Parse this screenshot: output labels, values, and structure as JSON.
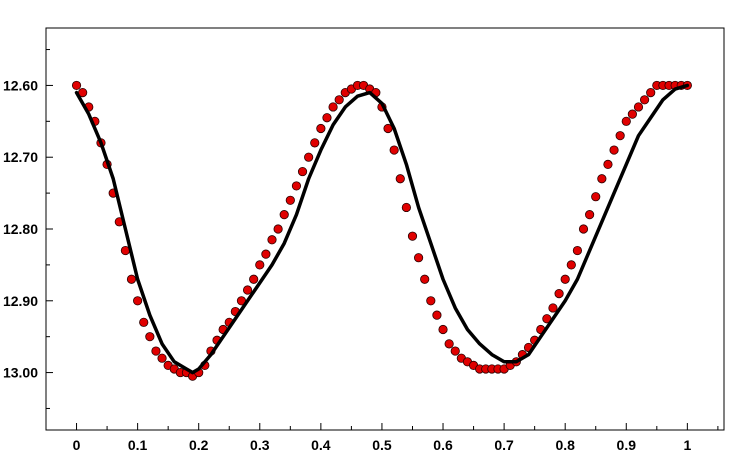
{
  "chart_data": {
    "type": "scatter",
    "title": "",
    "xlabel": "",
    "ylabel": "",
    "xlim": [
      -0.05,
      1.06
    ],
    "ylim": [
      13.08,
      12.52
    ],
    "y_inverted": true,
    "grid": false,
    "legend": "none",
    "x_ticks": [
      0,
      0.1,
      0.2,
      0.3,
      0.4,
      0.5,
      0.6,
      0.7,
      0.8,
      0.9,
      1
    ],
    "x_tick_labels": [
      "0",
      "0.1",
      "0.2",
      "0.3",
      "0.4",
      "0.5",
      "0.6",
      "0.7",
      "0.8",
      "0.9",
      "1"
    ],
    "y_ticks": [
      12.6,
      12.7,
      12.8,
      12.9,
      13.0
    ],
    "y_tick_labels": [
      "12.60",
      "12.70",
      "12.80",
      "12.90",
      "13.00"
    ],
    "colors": {
      "points_fill": "#e00000",
      "points_edge": "#2a0000",
      "fit_line": "#000000"
    },
    "series": [
      {
        "type": "scatter",
        "x": [
          0.0,
          0.01,
          0.02,
          0.03,
          0.04,
          0.05,
          0.06,
          0.07,
          0.08,
          0.09,
          0.1,
          0.11,
          0.12,
          0.13,
          0.14,
          0.15,
          0.16,
          0.17,
          0.18,
          0.19,
          0.2,
          0.21,
          0.22,
          0.23,
          0.24,
          0.25,
          0.26,
          0.27,
          0.28,
          0.29,
          0.3,
          0.31,
          0.32,
          0.33,
          0.34,
          0.35,
          0.36,
          0.37,
          0.38,
          0.39,
          0.4,
          0.41,
          0.42,
          0.43,
          0.44,
          0.45,
          0.46,
          0.47,
          0.48,
          0.49,
          0.5,
          0.51,
          0.52,
          0.53,
          0.54,
          0.55,
          0.56,
          0.57,
          0.58,
          0.59,
          0.6,
          0.61,
          0.62,
          0.63,
          0.64,
          0.65,
          0.66,
          0.67,
          0.68,
          0.69,
          0.7,
          0.71,
          0.72,
          0.73,
          0.74,
          0.75,
          0.76,
          0.77,
          0.78,
          0.79,
          0.8,
          0.81,
          0.82,
          0.83,
          0.84,
          0.85,
          0.86,
          0.87,
          0.88,
          0.89,
          0.9,
          0.91,
          0.92,
          0.93,
          0.94,
          0.95,
          0.96,
          0.97,
          0.98,
          0.99,
          1.0
        ],
        "y": [
          12.6,
          12.61,
          12.63,
          12.65,
          12.68,
          12.71,
          12.75,
          12.79,
          12.83,
          12.87,
          12.9,
          12.93,
          12.95,
          12.97,
          12.98,
          12.99,
          12.995,
          13.0,
          13.0,
          13.005,
          13.0,
          12.99,
          12.97,
          12.955,
          12.94,
          12.93,
          12.915,
          12.9,
          12.885,
          12.87,
          12.85,
          12.835,
          12.815,
          12.8,
          12.78,
          12.76,
          12.74,
          12.72,
          12.7,
          12.68,
          12.66,
          12.645,
          12.63,
          12.62,
          12.61,
          12.605,
          12.6,
          12.6,
          12.605,
          12.61,
          12.63,
          12.66,
          12.69,
          12.73,
          12.77,
          12.81,
          12.84,
          12.87,
          12.9,
          12.92,
          12.94,
          12.96,
          12.97,
          12.98,
          12.985,
          12.99,
          12.995,
          12.995,
          12.995,
          12.995,
          12.995,
          12.99,
          12.985,
          12.975,
          12.965,
          12.955,
          12.94,
          12.925,
          12.91,
          12.89,
          12.87,
          12.85,
          12.83,
          12.8,
          12.78,
          12.755,
          12.73,
          12.71,
          12.69,
          12.67,
          12.65,
          12.64,
          12.63,
          12.62,
          12.61,
          12.6,
          12.6,
          12.6,
          12.6,
          12.6,
          12.6
        ]
      },
      {
        "type": "line",
        "x": [
          0.0,
          0.02,
          0.04,
          0.06,
          0.08,
          0.1,
          0.12,
          0.14,
          0.16,
          0.18,
          0.19,
          0.2,
          0.22,
          0.24,
          0.26,
          0.28,
          0.3,
          0.32,
          0.34,
          0.36,
          0.38,
          0.4,
          0.42,
          0.44,
          0.46,
          0.48,
          0.5,
          0.52,
          0.54,
          0.56,
          0.58,
          0.6,
          0.62,
          0.64,
          0.66,
          0.68,
          0.7,
          0.72,
          0.74,
          0.76,
          0.78,
          0.8,
          0.82,
          0.84,
          0.86,
          0.88,
          0.9,
          0.92,
          0.94,
          0.96,
          0.98,
          1.0
        ],
        "y": [
          12.61,
          12.64,
          12.68,
          12.73,
          12.8,
          12.87,
          12.92,
          12.96,
          12.985,
          12.995,
          13.0,
          12.995,
          12.975,
          12.95,
          12.925,
          12.9,
          12.875,
          12.85,
          12.82,
          12.78,
          12.73,
          12.69,
          12.655,
          12.63,
          12.615,
          12.61,
          12.625,
          12.66,
          12.71,
          12.77,
          12.82,
          12.87,
          12.91,
          12.94,
          12.96,
          12.975,
          12.985,
          12.985,
          12.975,
          12.95,
          12.925,
          12.9,
          12.87,
          12.83,
          12.79,
          12.75,
          12.71,
          12.67,
          12.645,
          12.62,
          12.605,
          12.6
        ]
      }
    ]
  }
}
